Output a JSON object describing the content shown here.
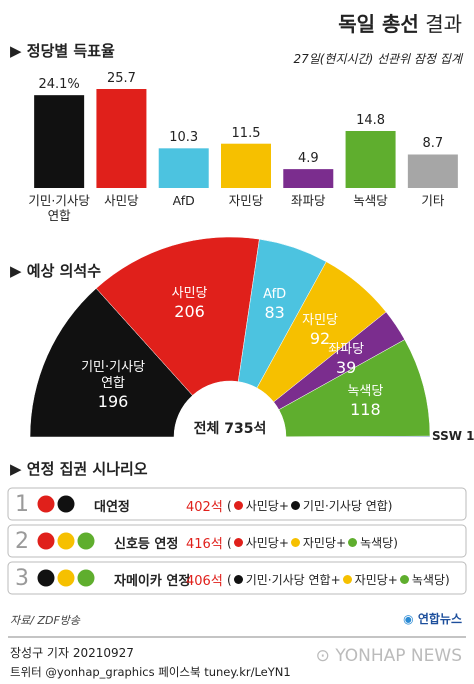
{
  "header": {
    "title_bold": "독일 총선",
    "title_rest": "결과"
  },
  "chart_data": [
    {
      "type": "bar",
      "title": "정당별 득표율",
      "subtitle": "27일(현지시간) 선관위 잠정 집계",
      "categories": [
        "기민·기사당 연합",
        "사민당",
        "AfD",
        "자민당",
        "좌파당",
        "녹색당",
        "기타"
      ],
      "values": [
        24.1,
        25.7,
        10.3,
        11.5,
        4.9,
        14.8,
        8.7
      ],
      "value_labels": [
        "24.1%",
        "25.7",
        "10.3",
        "11.5",
        "4.9",
        "14.8",
        "8.7"
      ],
      "colors": [
        "#111111",
        "#e0201b",
        "#4cc3e0",
        "#f6c000",
        "#7b2d8e",
        "#5fae2e",
        "#a6a6a6"
      ],
      "ylim": [
        0,
        27
      ]
    },
    {
      "type": "donut",
      "title": "예상 의석수",
      "categories": [
        "기민·기사당 연합",
        "사민당",
        "AfD",
        "자민당",
        "좌파당",
        "녹색당",
        "SSW"
      ],
      "values": [
        196,
        206,
        83,
        92,
        39,
        118,
        1
      ],
      "colors": [
        "#111111",
        "#e0201b",
        "#4cc3e0",
        "#f6c000",
        "#7b2d8e",
        "#5fae2e",
        "#1d4f9c"
      ],
      "center_label": "전체 735석"
    }
  ],
  "scenarios": {
    "title": "연정 집권 시나리오",
    "rows": [
      {
        "number": "1",
        "name": "대연정",
        "seats": "402석",
        "parties": [
          "사민당",
          "기민·기사당 연합"
        ],
        "colors": [
          "#e0201b",
          "#111111"
        ]
      },
      {
        "number": "2",
        "name": "신호등 연정",
        "seats": "416석",
        "parties": [
          "사민당",
          "자민당",
          "녹색당"
        ],
        "colors": [
          "#e0201b",
          "#f6c000",
          "#5fae2e"
        ]
      },
      {
        "number": "3",
        "name": "자메이카 연정",
        "seats": "406석",
        "parties": [
          "기민·기사당 연합",
          "자민당",
          "녹색당"
        ],
        "colors": [
          "#111111",
          "#f6c000",
          "#5fae2e"
        ]
      }
    ]
  },
  "footer": {
    "source": "자료/ ZDF방송",
    "logo": "연합뉴스",
    "byline": "장성구 기자  20210927",
    "social": "트위터 @yonhap_graphics  페이스북 tuney.kr/LeYN1",
    "watermark": "YONHAP NEWS"
  }
}
